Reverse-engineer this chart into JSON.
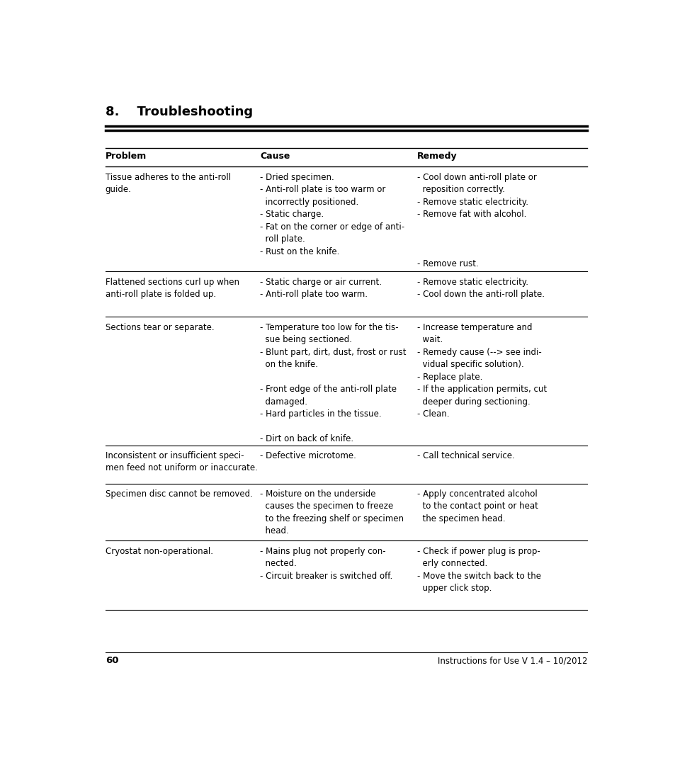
{
  "title": "8.    Troubleshooting",
  "page_number": "60",
  "footer_text": "Instructions for Use V 1.4 – 10/2012",
  "background_color": "#ffffff",
  "text_color": "#000000",
  "header_cols": [
    "Problem",
    "Cause",
    "Remedy"
  ],
  "rows": [
    {
      "problem": "Tissue adheres to the anti-roll\nguide.",
      "cause": "- Dried specimen.\n- Anti-roll plate is too warm or\n  incorrectly positioned.\n- Static charge.\n- Fat on the corner or edge of anti-\n  roll plate.\n- Rust on the knife.",
      "remedy": "- Cool down anti-roll plate or\n  reposition correctly.\n- Remove static electricity.\n- Remove fat with alcohol.\n\n\n\n- Remove rust."
    },
    {
      "problem": "Flattened sections curl up when\nanti-roll plate is folded up.",
      "cause": "- Static charge or air current.\n- Anti-roll plate too warm.",
      "remedy": "- Remove static electricity.\n- Cool down the anti-roll plate."
    },
    {
      "problem": "Sections tear or separate.",
      "cause": "- Temperature too low for the tis-\n  sue being sectioned.\n- Blunt part, dirt, dust, frost or rust\n  on the knife.\n\n- Front edge of the anti-roll plate\n  damaged.\n- Hard particles in the tissue.\n\n- Dirt on back of knife.",
      "remedy": "- Increase temperature and\n  wait.\n- Remedy cause (--> see indi-\n  vidual specific solution).\n- Replace plate.\n- If the application permits, cut\n  deeper during sectioning.\n- Clean."
    },
    {
      "problem": "Inconsistent or insufficient speci-\nmen feed not uniform or inaccurate.",
      "cause": "- Defective microtome.",
      "remedy": "- Call technical service."
    },
    {
      "problem": "Specimen disc cannot be removed.",
      "cause": "- Moisture on the underside\n  causes the specimen to freeze\n  to the freezing shelf or specimen\n  head.",
      "remedy": "- Apply concentrated alcohol\n  to the contact point or heat\n  the specimen head."
    },
    {
      "problem": "Cryostat non-operational.",
      "cause": "- Mains plug not properly con-\n  nected.\n- Circuit breaker is switched off.",
      "remedy": "- Check if power plug is prop-\n  erly connected.\n- Move the switch back to the\n  upper click stop."
    }
  ]
}
